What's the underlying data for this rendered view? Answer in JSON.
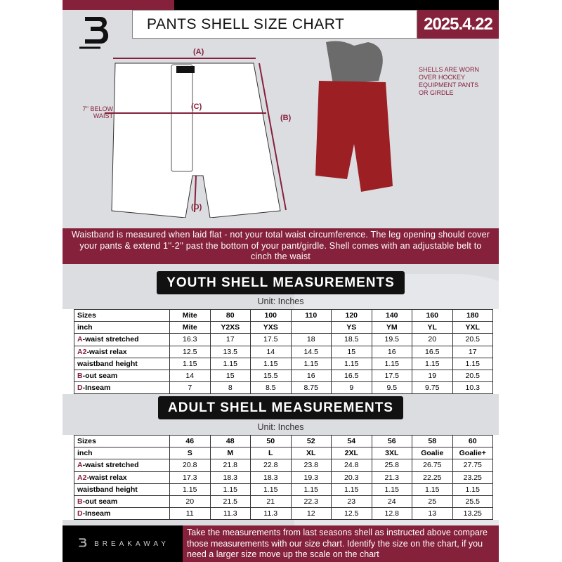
{
  "header": {
    "title": "PANTS SHELL SIZE CHART",
    "date": "2025.4.22",
    "logo": "B"
  },
  "diagram": {
    "label_a": "(A)",
    "label_b": "(B)",
    "label_c": "(C)",
    "label_d": "(D)",
    "below_waist": "7'' BELOW WAIST",
    "shells_note": "SHELLS ARE WORN OVER HOCKEY EQUIPMENT PANTS OR GIRDLE"
  },
  "info_band": "Waistband is measured when laid flat - not your total waist circumference. The leg opening should cover your pants & extend 1''-2'' past the bottom of your pant/girdle. Shell comes with an adjustable belt to cinch the waist",
  "youth": {
    "title": "YOUTH SHELL MEASUREMENTS",
    "unit": "Unit: Inches",
    "rows": [
      {
        "label": "Sizes",
        "values": [
          "Mite",
          "80",
          "100",
          "110",
          "120",
          "140",
          "160",
          "180"
        ]
      },
      {
        "label": "inch",
        "values": [
          "Mite",
          "Y2XS",
          "YXS",
          "",
          "YS",
          "YM",
          "YL",
          "YXL"
        ]
      },
      {
        "prefix": "A",
        "label": "-waist stretched",
        "values": [
          "16.3",
          "17",
          "17.5",
          "18",
          "18.5",
          "19.5",
          "20",
          "20.5"
        ]
      },
      {
        "prefix": "A2",
        "label": "-waist relax",
        "values": [
          "12.5",
          "13.5",
          "14",
          "14.5",
          "15",
          "16",
          "16.5",
          "17"
        ]
      },
      {
        "label": "waistband height",
        "values": [
          "1.15",
          "1.15",
          "1.15",
          "1.15",
          "1.15",
          "1.15",
          "1.15",
          "1.15"
        ]
      },
      {
        "prefix": "B",
        "label": "-out seam",
        "values": [
          "14",
          "15",
          "15.5",
          "16",
          "16.5",
          "17.5",
          "19",
          "20.5"
        ]
      },
      {
        "prefix": "D",
        "label": "-Inseam",
        "values": [
          "7",
          "8",
          "8.5",
          "8.75",
          "9",
          "9.5",
          "9.75",
          "10.3"
        ]
      }
    ]
  },
  "adult": {
    "title": "ADULT SHELL MEASUREMENTS",
    "unit": "Unit: Inches",
    "rows": [
      {
        "label": "Sizes",
        "values": [
          "46",
          "48",
          "50",
          "52",
          "54",
          "56",
          "58",
          "60"
        ]
      },
      {
        "label": "inch",
        "values": [
          "S",
          "M",
          "L",
          "XL",
          "2XL",
          "3XL",
          "Goalie",
          "Goalie+"
        ]
      },
      {
        "prefix": "A",
        "label": "-waist stretched",
        "values": [
          "20.8",
          "21.8",
          "22.8",
          "23.8",
          "24.8",
          "25.8",
          "26.75",
          "27.75"
        ]
      },
      {
        "prefix": "A2",
        "label": "-waist relax",
        "values": [
          "17.3",
          "18.3",
          "18.3",
          "19.3",
          "20.3",
          "21.3",
          "22.25",
          "23.25"
        ]
      },
      {
        "label": "waistband height",
        "values": [
          "1.15",
          "1.15",
          "1.15",
          "1.15",
          "1.15",
          "1.15",
          "1.15",
          "1.15"
        ]
      },
      {
        "prefix": "B",
        "label": "-out seam",
        "values": [
          "20",
          "21.5",
          "21",
          "22.3",
          "23",
          "24",
          "25",
          "25.5"
        ]
      },
      {
        "prefix": "D",
        "label": "-Inseam",
        "values": [
          "11",
          "11.3",
          "11.3",
          "12",
          "12.5",
          "12.8",
          "13",
          "13.25"
        ]
      }
    ]
  },
  "footer": {
    "brand": "BREAKAWAY",
    "text": "Take the measurements from last seasons shell as instructed above compare those measurements  with our size chart. Identify the size on the chart, if you need a larger size move up the scale on the chart"
  },
  "colors": {
    "accent": "#85213b",
    "background": "#dcdde1"
  }
}
